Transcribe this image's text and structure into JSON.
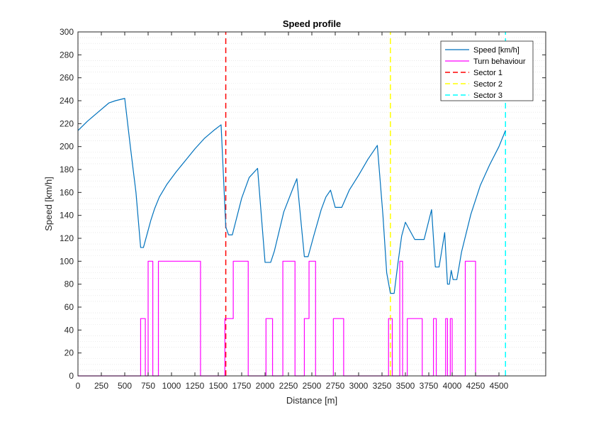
{
  "chart_data": {
    "type": "line",
    "title": "Speed profile",
    "xlabel": "Distance [m]",
    "ylabel": "Speed [km/h]",
    "xlim": [
      0,
      5000
    ],
    "ylim": [
      0,
      300
    ],
    "xticks": [
      0,
      250,
      500,
      750,
      1000,
      1250,
      1500,
      1750,
      2000,
      2250,
      2500,
      2750,
      3000,
      3250,
      3500,
      3750,
      4000,
      4250,
      4500
    ],
    "yticks": [
      0,
      20,
      40,
      60,
      80,
      100,
      120,
      140,
      160,
      180,
      200,
      220,
      240,
      260,
      280,
      300
    ],
    "grid": "horizontal minor dotted",
    "legend_position": "top-right",
    "series": [
      {
        "name": "Speed [km/h]",
        "color": "#0072bd",
        "style": "solid",
        "x": [
          0,
          100,
          200,
          330,
          400,
          500,
          560,
          620,
          670,
          700,
          740,
          780,
          820,
          870,
          950,
          1050,
          1150,
          1250,
          1350,
          1450,
          1530,
          1580,
          1610,
          1650,
          1750,
          1830,
          1920,
          2000,
          2060,
          2100,
          2200,
          2300,
          2340,
          2420,
          2460,
          2520,
          2600,
          2650,
          2700,
          2750,
          2820,
          2900,
          3000,
          3100,
          3200,
          3260,
          3300,
          3340,
          3380,
          3420,
          3460,
          3500,
          3600,
          3700,
          3780,
          3820,
          3860,
          3920,
          3950,
          3970,
          3990,
          4010,
          4050,
          4100,
          4200,
          4300,
          4400,
          4500,
          4570
        ],
        "y": [
          214,
          222,
          229,
          238,
          240,
          242,
          200,
          160,
          112,
          112,
          124,
          136,
          146,
          156,
          167,
          178,
          188,
          198,
          207,
          214,
          219,
          130,
          123,
          123,
          155,
          173,
          181,
          99,
          99,
          109,
          143,
          164,
          172,
          104,
          104,
          122,
          145,
          156,
          162,
          147,
          147,
          162,
          175,
          189,
          201,
          140,
          90,
          72,
          72,
          98,
          122,
          134,
          119,
          119,
          145,
          95,
          95,
          125,
          80,
          80,
          92,
          84,
          84,
          108,
          141,
          166,
          184,
          200,
          214
        ]
      },
      {
        "name": "Turn behaviour",
        "color": "#ff00ff",
        "style": "step",
        "x": [
          0,
          670,
          670,
          720,
          720,
          750,
          750,
          800,
          800,
          860,
          860,
          1310,
          1310,
          1570,
          1570,
          1660,
          1660,
          1820,
          1820,
          2010,
          2010,
          2080,
          2080,
          2190,
          2190,
          2320,
          2320,
          2420,
          2420,
          2470,
          2470,
          2540,
          2540,
          2730,
          2730,
          2840,
          2840,
          3320,
          3320,
          3360,
          3360,
          3440,
          3440,
          3470,
          3470,
          3520,
          3520,
          3680,
          3680,
          3800,
          3800,
          3830,
          3830,
          3930,
          3930,
          3950,
          3950,
          3980,
          3980,
          4000,
          4000,
          4140,
          4140,
          4250,
          4250,
          4500
        ],
        "y": [
          0,
          0,
          50,
          50,
          0,
          0,
          100,
          100,
          0,
          0,
          100,
          100,
          0,
          0,
          50,
          50,
          100,
          100,
          0,
          0,
          50,
          50,
          0,
          0,
          100,
          100,
          0,
          0,
          50,
          50,
          100,
          100,
          0,
          0,
          50,
          50,
          0,
          0,
          50,
          50,
          0,
          0,
          100,
          100,
          0,
          0,
          50,
          50,
          0,
          0,
          50,
          50,
          0,
          0,
          50,
          50,
          0,
          0,
          50,
          50,
          0,
          0,
          100,
          100,
          0,
          0
        ]
      },
      {
        "name": "Sector 1",
        "color": "#ff0000",
        "style": "dashed",
        "x": [
          1580,
          1580
        ],
        "y": [
          0,
          300
        ]
      },
      {
        "name": "Sector 2",
        "color": "#ffff00",
        "style": "dashed",
        "x": [
          3340,
          3340
        ],
        "y": [
          0,
          300
        ]
      },
      {
        "name": "Sector 3",
        "color": "#00ffff",
        "style": "dashed",
        "x": [
          4570,
          4570
        ],
        "y": [
          0,
          300
        ]
      }
    ]
  }
}
